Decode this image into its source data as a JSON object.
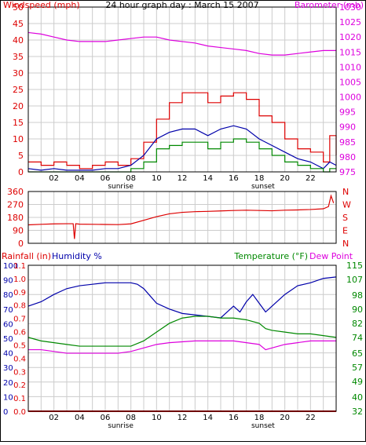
{
  "title": "24 hour graph day : March 15 2007",
  "colors": {
    "wind": "#dd0000",
    "gust": "#dd0000",
    "avg": "#0000aa",
    "speed": "#008800",
    "baro": "#dd00dd",
    "dir": "#dd0000",
    "hum": "#0000aa",
    "temp": "#008800",
    "dew": "#dd00dd",
    "rain": "#dd0000",
    "grid": "#cccccc",
    "frame": "#000000"
  },
  "x_ticks": [
    "02",
    "04",
    "06",
    "08",
    "10",
    "12",
    "14",
    "16",
    "18",
    "20",
    "22"
  ],
  "sunrise_label": "sunrise",
  "sunset_label": "sunset",
  "chart_data": [
    {
      "type": "line",
      "panel": "wind",
      "title": "24 hour graph day : March 15 2007",
      "ylabel_left": "Windspeed (mph)",
      "ylabel_right": "Barometer (mb)",
      "xlim": [
        0,
        24
      ],
      "ylim_left": [
        0,
        50
      ],
      "ylim_right": [
        975,
        1030
      ],
      "y_ticks_left": [
        "0",
        "5",
        "10",
        "15",
        "20",
        "25",
        "30",
        "35",
        "40",
        "45",
        "50"
      ],
      "y_ticks_right": [
        "975",
        "980",
        "985",
        "990",
        "995",
        "1000",
        "1005",
        "1010",
        "1015",
        "1020",
        "1025",
        "1030"
      ],
      "series": [
        {
          "role": "gust",
          "axis": "left",
          "x": [
            0,
            1,
            2,
            3,
            4,
            5,
            6,
            7,
            8,
            9,
            10,
            11,
            12,
            13,
            14,
            15,
            16,
            17,
            18,
            19,
            20,
            21,
            22,
            23,
            23.5,
            24
          ],
          "values": [
            3,
            2,
            3,
            2,
            1,
            2,
            3,
            2,
            4,
            9,
            16,
            21,
            24,
            24,
            21,
            23,
            24,
            22,
            17,
            15,
            10,
            7,
            6,
            3,
            11,
            5
          ]
        },
        {
          "role": "avg",
          "axis": "left",
          "x": [
            0,
            1,
            2,
            3,
            4,
            5,
            6,
            7,
            8,
            9,
            10,
            11,
            12,
            13,
            14,
            15,
            16,
            17,
            18,
            19,
            20,
            21,
            22,
            23,
            23.5,
            24
          ],
          "values": [
            1,
            0.5,
            1,
            0.5,
            0.5,
            0.5,
            1,
            1,
            2,
            5,
            10,
            12,
            13,
            13,
            11,
            13,
            14,
            13,
            10,
            8,
            6,
            4,
            3,
            1,
            3,
            2
          ]
        },
        {
          "role": "speed",
          "axis": "left",
          "x": [
            0,
            1,
            2,
            3,
            4,
            5,
            6,
            7,
            8,
            9,
            10,
            11,
            12,
            13,
            14,
            15,
            16,
            17,
            18,
            19,
            20,
            21,
            22,
            23,
            23.5,
            24
          ],
          "values": [
            0,
            0,
            0,
            0,
            0,
            0,
            0,
            0,
            1,
            3,
            7,
            8,
            9,
            9,
            7,
            9,
            10,
            9,
            7,
            5,
            3,
            2,
            1,
            0,
            1,
            1
          ]
        },
        {
          "role": "baro",
          "axis": "right",
          "x": [
            0,
            1,
            2,
            3,
            4,
            5,
            6,
            7,
            8,
            9,
            10,
            11,
            12,
            13,
            14,
            15,
            16,
            17,
            18,
            19,
            20,
            21,
            22,
            23,
            24
          ],
          "values": [
            1021.5,
            1021,
            1020,
            1019,
            1018.5,
            1018.5,
            1018.5,
            1019,
            1019.5,
            1020,
            1020,
            1019,
            1018.5,
            1018,
            1017,
            1016.5,
            1016,
            1015.5,
            1014.5,
            1014,
            1014,
            1014.5,
            1015,
            1015.5,
            1015.5
          ]
        }
      ]
    },
    {
      "type": "line",
      "panel": "direction",
      "ylim": [
        0,
        360
      ],
      "y_ticks": [
        "0",
        "90",
        "180",
        "270",
        "360"
      ],
      "dir_labels": [
        "N",
        "W",
        "S",
        "E",
        "N"
      ],
      "series": [
        {
          "role": "dir",
          "x": [
            0,
            1,
            2,
            3,
            3.5,
            3.6,
            3.7,
            4,
            5,
            6,
            7,
            8,
            9,
            10,
            11,
            12,
            13,
            14,
            15,
            16,
            17,
            18,
            19,
            20,
            21,
            22,
            23,
            23.4,
            23.6,
            23.8
          ],
          "values": [
            128,
            132,
            135,
            136,
            136,
            30,
            136,
            133,
            132,
            131,
            130,
            135,
            160,
            185,
            205,
            215,
            220,
            222,
            225,
            228,
            230,
            228,
            226,
            230,
            232,
            235,
            240,
            255,
            330,
            280
          ]
        }
      ]
    },
    {
      "type": "line",
      "panel": "temperature",
      "ylabel_left": "Rainfall (in)",
      "ylabel_hum": "Humidity %",
      "ylabel_right": "Temperature (°F)",
      "ylabel_dew": "Dew Point",
      "ylim_rain": [
        0,
        1.1
      ],
      "ylim_hum": [
        0,
        100
      ],
      "ylim_temp": [
        32,
        115
      ],
      "y_ticks_hum": [
        "0",
        "10",
        "20",
        "30",
        "40",
        "50",
        "60",
        "70",
        "80",
        "90",
        "100"
      ],
      "y_ticks_rain": [
        "0.0",
        "0.1",
        "0.2",
        "0.3",
        "0.4",
        "0.5",
        "0.6",
        "0.7",
        "0.8",
        "0.9",
        "1.0",
        "1.1"
      ],
      "y_ticks_temp": [
        "32",
        "40",
        "49",
        "57",
        "65",
        "74",
        "82",
        "90",
        "98",
        "107",
        "115"
      ],
      "series": [
        {
          "role": "hum",
          "axis": "hum",
          "x": [
            0,
            1,
            2,
            3,
            4,
            5,
            6,
            7,
            8,
            8.5,
            9,
            9.5,
            10,
            11,
            12,
            13,
            14,
            15,
            15.5,
            16,
            16.5,
            17,
            17.5,
            18,
            18.5,
            19,
            20,
            21,
            22,
            23,
            24
          ],
          "values": [
            72,
            75,
            80,
            84,
            86,
            87,
            88,
            88,
            88,
            87,
            84,
            79,
            74,
            70,
            67,
            66,
            65,
            64,
            68,
            72,
            68,
            75,
            80,
            74,
            68,
            72,
            80,
            86,
            88,
            91,
            92
          ]
        },
        {
          "role": "temp",
          "axis": "temp",
          "x": [
            0,
            1,
            2,
            3,
            4,
            5,
            6,
            7,
            8,
            9,
            10,
            11,
            12,
            13,
            14,
            15,
            16,
            17,
            18,
            18.5,
            19,
            20,
            21,
            22,
            23,
            24
          ],
          "values": [
            74,
            72,
            71,
            70,
            69,
            69,
            69,
            69,
            69,
            72,
            77,
            82,
            85,
            86,
            86,
            85,
            85,
            84,
            82,
            79,
            78,
            77,
            76,
            76,
            75,
            74
          ]
        },
        {
          "role": "dew",
          "axis": "temp",
          "x": [
            0,
            1,
            2,
            3,
            4,
            5,
            6,
            7,
            8,
            9,
            10,
            11,
            12,
            13,
            14,
            15,
            16,
            17,
            18,
            18.5,
            19,
            20,
            21,
            22,
            23,
            24
          ],
          "values": [
            67,
            67,
            66,
            65,
            65,
            65,
            65,
            65,
            66,
            68,
            70,
            71,
            71.5,
            72,
            72,
            72,
            72,
            71,
            70,
            67,
            68,
            70,
            71,
            72,
            72,
            72
          ]
        },
        {
          "role": "rain",
          "axis": "rain",
          "x": [
            0,
            24
          ],
          "values": [
            0,
            0
          ]
        }
      ]
    }
  ]
}
